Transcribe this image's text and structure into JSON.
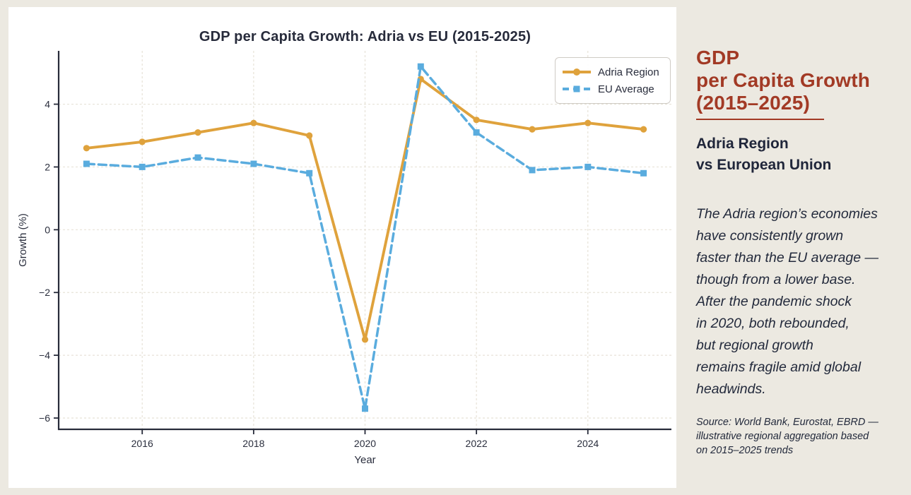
{
  "colors": {
    "background": "#ece9e1",
    "panel": "#ffffff",
    "text_navy": "#242a3b",
    "accent_red": "#a23a25",
    "adria_orange": "#dfa23c",
    "eu_blue": "#5aacde",
    "gridline": "#e7e2d8",
    "spine": "#272b3a"
  },
  "chart_data": {
    "type": "line",
    "title": "GDP per Capita Growth: Adria vs EU (2015-2025)",
    "xlabel": "Year",
    "ylabel": "Growth (%)",
    "x": [
      2015,
      2016,
      2017,
      2018,
      2019,
      2020,
      2021,
      2022,
      2023,
      2024,
      2025
    ],
    "series": [
      {
        "name": "Adria Region",
        "color": "#dfa23c",
        "style": "solid",
        "marker": "circle",
        "values": [
          2.6,
          2.8,
          3.1,
          3.4,
          3.0,
          -3.5,
          4.8,
          3.5,
          3.2,
          3.4,
          3.2
        ]
      },
      {
        "name": "EU Average",
        "color": "#5aacde",
        "style": "dashed",
        "marker": "square",
        "values": [
          2.1,
          2.0,
          2.3,
          2.1,
          1.8,
          -5.7,
          5.2,
          3.1,
          1.9,
          2.0,
          1.8
        ]
      }
    ],
    "x_ticks": [
      2016,
      2018,
      2020,
      2022,
      2024
    ],
    "y_ticks": [
      4,
      2,
      0,
      -2,
      -4,
      -6
    ],
    "xlim": [
      2014.5,
      2025.5
    ],
    "ylim": [
      -6.36,
      5.7
    ],
    "grid": true,
    "legend_position": "upper right"
  },
  "sidebar": {
    "title": "GDP\nper Capita Growth\n(2015–2025)",
    "subtitle": "Adria Region\nvs European Union",
    "body": "The Adria region’s economies\nhave consistently grown\nfaster than the EU average —\nthough from a lower base.\nAfter the pandemic shock\nin 2020, both rebounded,\nbut regional growth\nremains fragile amid global\nheadwinds.",
    "source": "Source: World Bank, Eurostat, EBRD —\nillustrative regional aggregation based\non 2015–2025 trends"
  }
}
